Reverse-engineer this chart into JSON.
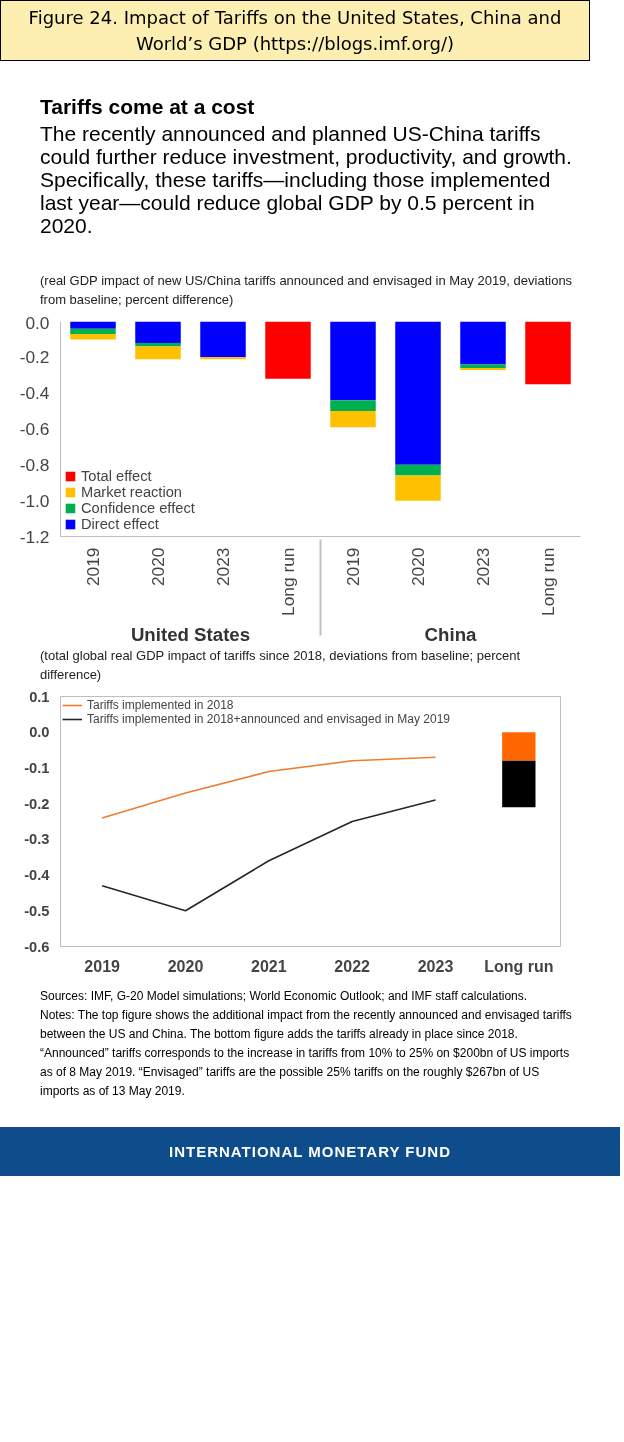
{
  "chart_data": [
    {
      "type": "other",
      "title": "Figure 24. Impact of Tariffs on the United States, China and World’s GDP (https://blogs.imf.org/)",
      "annotations": [
        "Tariffs come at a cost",
        "The recently announced and planned US-China tariffs could further reduce investment, productivity, and growth. Specifically, these tariffs—including those implemented last year—could reduce global GDP by 0.5 percent in 2020."
      ]
    },
    {
      "type": "bar",
      "title": "(real GDP impact of new US/China tariffs announced and envisaged in May 2019, deviations from baseline; percent difference)",
      "categories": [
        "2019",
        "2020",
        "2023",
        "Long run",
        "2019",
        "2020",
        "2023",
        "Long run"
      ],
      "annotations": [
        "United States",
        "China"
      ],
      "stacked": true,
      "legend": "bottom left",
      "ylim": [
        -1.2,
        0
      ],
      "yticks": [
        {
          "value": 0,
          "label": "0.0"
        },
        {
          "value": -0.2,
          "label": "-0.2"
        },
        {
          "value": -0.4,
          "label": "-0.4"
        },
        {
          "value": -0.6,
          "label": "-0.6"
        },
        {
          "value": -0.8,
          "label": "-0.8"
        },
        {
          "value": -1.0,
          "label": "-1.0"
        },
        {
          "value": -1.2,
          "label": "-1.2"
        }
      ],
      "series": [
        {
          "name": "Direct effect",
          "color": "#0000ff",
          "values": [
            -0.04,
            -0.12,
            -0.2,
            null,
            -0.44,
            -0.8,
            -0.24,
            null
          ]
        },
        {
          "name": "Confidence effect",
          "color": "#00b050",
          "values": [
            -0.03,
            -0.02,
            null,
            null,
            -0.06,
            -0.06,
            -0.02,
            null
          ]
        },
        {
          "name": "Market reaction",
          "color": "#ffc000",
          "values": [
            -0.03,
            -0.07,
            -0.01,
            null,
            -0.09,
            -0.14,
            -0.01,
            null
          ]
        },
        {
          "name": "Total effect",
          "color": "#ff0000",
          "values": [
            null,
            null,
            null,
            -0.32,
            null,
            null,
            null,
            -0.35
          ]
        }
      ]
    },
    {
      "type": "line",
      "title": "(total global real GDP impact of tariffs since 2018, deviations from baseline; percent difference)",
      "categories": [
        "2019",
        "2020",
        "2021",
        "2022",
        "2023",
        "Long run"
      ],
      "legend": "top left",
      "stacked": true,
      "ylim": [
        -0.6,
        0.1
      ],
      "yticks": [
        {
          "value": 0.1,
          "label": "0.1"
        },
        {
          "value": 0,
          "label": "0.0"
        },
        {
          "value": -0.1,
          "label": "-0.1"
        },
        {
          "value": -0.2,
          "label": "-0.2"
        },
        {
          "value": -0.3,
          "label": "-0.3"
        },
        {
          "value": -0.4,
          "label": "-0.4"
        },
        {
          "value": -0.5,
          "label": "-0.5"
        },
        {
          "value": -0.6,
          "label": "-0.6"
        }
      ],
      "series": [
        {
          "type": "line",
          "name": "Tariffs implemented in 2018",
          "color": "#ed7d31",
          "values": [
            -0.24,
            -0.17,
            -0.11,
            -0.08,
            -0.07,
            null
          ]
        },
        {
          "type": "line",
          "name": "Tariffs implemented in 2018+announced and envisaged in May 2019",
          "color": "#262626",
          "values": [
            -0.43,
            -0.5,
            -0.36,
            -0.25,
            -0.19,
            null
          ]
        },
        {
          "type": "bar",
          "color": "#ff6600",
          "values": [
            null,
            null,
            null,
            null,
            null,
            -0.08
          ]
        },
        {
          "type": "bar",
          "color": "#000000",
          "values": [
            null,
            null,
            null,
            null,
            null,
            -0.13
          ]
        }
      ],
      "annotations": [
        "Sources: IMF, G-20 Model simulations; World Economic Outlook; and IMF staff calculations.",
        "Notes: The top figure shows the additional impact from the recently announced and envisaged tariffs between the US and China. The bottom figure adds the tariffs already in place since 2018. “Announced” tariffs corresponds to the increase in tariffs from 10% to 25% on $200bn of US imports as of 8 May 2019. “Envisaged” tariffs are the possible 25% tariffs on the roughly $267bn of US imports as of 13 May 2019.",
        "INTERNATIONAL MONETARY FUND"
      ]
    }
  ]
}
